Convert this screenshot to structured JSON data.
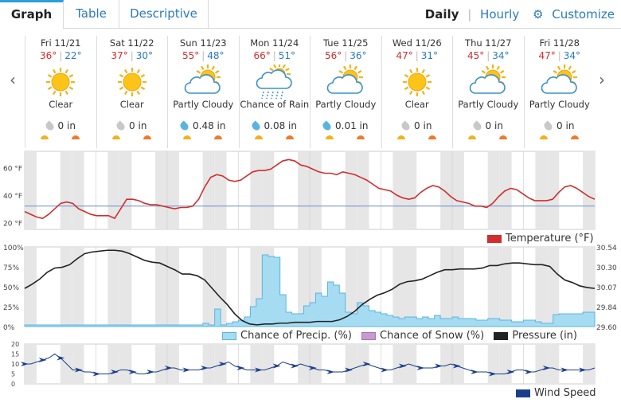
{
  "tabs": [
    {
      "label": "Graph",
      "active": true
    },
    {
      "label": "Table",
      "active": false
    },
    {
      "label": "Descriptive",
      "active": false
    }
  ],
  "modes": {
    "daily": "Daily",
    "hourly": "Hourly",
    "customize": "Customize"
  },
  "days": [
    {
      "name": "Fri 11/21",
      "hi": "36°",
      "lo": "22°",
      "cond": "Clear",
      "icon": "sun-icon",
      "precip": "0 in",
      "wet": false
    },
    {
      "name": "Sat 11/22",
      "hi": "37°",
      "lo": "30°",
      "cond": "Clear",
      "icon": "sun-icon",
      "precip": "0 in",
      "wet": false
    },
    {
      "name": "Sun 11/23",
      "hi": "55°",
      "lo": "48°",
      "cond": "Partly Cloudy",
      "icon": "partly-cloudy-icon",
      "precip": "0.48 in",
      "wet": true
    },
    {
      "name": "Mon 11/24",
      "hi": "66°",
      "lo": "51°",
      "cond": "Chance of Rain",
      "icon": "rain-icon",
      "precip": "0.08 in",
      "wet": true
    },
    {
      "name": "Tue 11/25",
      "hi": "56°",
      "lo": "36°",
      "cond": "Partly Cloudy",
      "icon": "partly-cloudy-icon",
      "precip": "0.01 in",
      "wet": true
    },
    {
      "name": "Wed 11/26",
      "hi": "47°",
      "lo": "31°",
      "cond": "Clear",
      "icon": "sun-icon",
      "precip": "0 in",
      "wet": false
    },
    {
      "name": "Thu 11/27",
      "hi": "45°",
      "lo": "34°",
      "cond": "Partly Cloudy",
      "icon": "partly-cloudy-icon",
      "precip": "0 in",
      "wet": false
    },
    {
      "name": "Fri 11/28",
      "hi": "47°",
      "lo": "34°",
      "cond": "Partly Cloudy",
      "icon": "partly-cloudy-icon",
      "precip": "0 in",
      "wet": false
    }
  ],
  "colors": {
    "temp": "#d12d2d",
    "precip": "#a6dcf2",
    "snow": "#c79bd0",
    "pressure": "#222222",
    "wind": "#1a3f8a",
    "freeze": "#6a8fd1",
    "shade": "#e6e6e6"
  },
  "chart_data": [
    {
      "type": "line",
      "title": "",
      "ylabel": "",
      "yticks": [
        "60 °F",
        "40 °F",
        "20 °F"
      ],
      "ylim": [
        15,
        72
      ],
      "freezing_line": 32,
      "series": [
        {
          "name": "Temperature (°F)",
          "values": [
            28,
            26,
            24,
            23,
            26,
            30,
            34,
            35,
            34,
            30,
            28,
            26,
            25,
            25,
            25,
            23,
            30,
            37,
            37,
            36,
            34,
            33,
            33,
            32,
            31,
            30,
            31,
            31,
            32,
            37,
            46,
            53,
            55,
            54,
            51,
            50,
            51,
            54,
            57,
            58,
            58,
            59,
            62,
            65,
            66,
            65,
            62,
            61,
            59,
            57,
            56,
            56,
            55,
            57,
            56,
            55,
            53,
            51,
            48,
            45,
            44,
            43,
            40,
            38,
            37,
            38,
            42,
            45,
            47,
            46,
            43,
            39,
            36,
            35,
            34,
            32,
            32,
            31,
            34,
            39,
            43,
            45,
            44,
            41,
            38,
            36,
            36,
            36,
            37,
            42,
            46,
            47,
            45,
            42,
            39,
            37
          ]
        }
      ],
      "legend": "Temperature (°F)"
    },
    {
      "type": "area",
      "yticks_left": [
        "100%",
        "75%",
        "50%",
        "25%",
        "0%"
      ],
      "yticks_right": [
        "30.54",
        "30.30",
        "30.07",
        "29.84",
        "29.60"
      ],
      "ylim_left": [
        0,
        100
      ],
      "ylim_right": [
        29.6,
        30.54
      ],
      "series": [
        {
          "name": "Chance of Precip. (%)",
          "values": [
            2,
            2,
            2,
            2,
            2,
            2,
            2,
            2,
            2,
            2,
            2,
            2,
            2,
            2,
            2,
            2,
            2,
            2,
            2,
            2,
            2,
            2,
            2,
            2,
            2,
            2,
            2,
            2,
            2,
            2,
            4,
            2,
            22,
            2,
            4,
            6,
            8,
            12,
            25,
            35,
            90,
            88,
            87,
            40,
            18,
            16,
            16,
            26,
            30,
            42,
            38,
            56,
            52,
            42,
            18,
            16,
            30,
            26,
            20,
            18,
            16,
            14,
            12,
            10,
            12,
            12,
            10,
            12,
            10,
            14,
            10,
            10,
            12,
            10,
            10,
            10,
            8,
            8,
            10,
            10,
            8,
            8,
            6,
            6,
            8,
            8,
            6,
            4,
            4,
            15,
            16,
            16,
            16,
            16,
            18,
            18
          ]
        },
        {
          "name": "Chance of Snow (%)",
          "values": []
        },
        {
          "name": "Pressure (in)",
          "values": [
            30.05,
            30.1,
            30.16,
            30.24,
            30.29,
            30.3,
            30.33,
            30.4,
            30.46,
            30.48,
            30.49,
            30.5,
            30.5,
            30.49,
            30.46,
            30.42,
            30.38,
            30.36,
            30.35,
            30.31,
            30.27,
            30.22,
            30.22,
            30.2,
            30.15,
            30.05,
            29.95,
            29.86,
            29.75,
            29.67,
            29.63,
            29.62,
            29.63,
            29.63,
            29.64,
            29.64,
            29.65,
            29.65,
            29.65,
            29.66,
            29.66,
            29.66,
            29.68,
            29.72,
            29.78,
            29.86,
            29.92,
            29.97,
            30.0,
            30.04,
            30.1,
            30.13,
            30.14,
            30.16,
            30.2,
            30.24,
            30.27,
            30.27,
            30.28,
            30.28,
            30.28,
            30.29,
            30.32,
            30.32,
            30.34,
            30.35,
            30.35,
            30.34,
            30.33,
            30.33,
            30.31,
            30.22,
            30.15,
            30.12,
            30.08,
            30.06,
            30.05
          ]
        }
      ],
      "legend": [
        "Chance of Precip. (%)",
        "Chance of Snow (%)",
        "Pressure (in)"
      ]
    },
    {
      "type": "line",
      "yticks": [
        "20",
        "15",
        "10",
        "5",
        "0"
      ],
      "ylim": [
        0,
        20
      ],
      "series": [
        {
          "name": "Wind Speed",
          "values": [
            10,
            10,
            11,
            12,
            13,
            15,
            13,
            10,
            7,
            7,
            6,
            6,
            5,
            5,
            5,
            6,
            7,
            7,
            6,
            5,
            5,
            6,
            6,
            7,
            8,
            8,
            7,
            7,
            7,
            7,
            8,
            8,
            9,
            10,
            11,
            9,
            8,
            7,
            7,
            7,
            7,
            8,
            9,
            11,
            10,
            9,
            10,
            9,
            8,
            7,
            7,
            6,
            6,
            6,
            7,
            8,
            9,
            10,
            9,
            8,
            7,
            7,
            8,
            9,
            10,
            9,
            8,
            8,
            8,
            9,
            9,
            10,
            9,
            8,
            7,
            6,
            6,
            6,
            5,
            5,
            5,
            6,
            7,
            7,
            6,
            6,
            7,
            8,
            8,
            7,
            7,
            7,
            7,
            7,
            7,
            8
          ]
        }
      ],
      "legend": "Wind Speed"
    }
  ]
}
